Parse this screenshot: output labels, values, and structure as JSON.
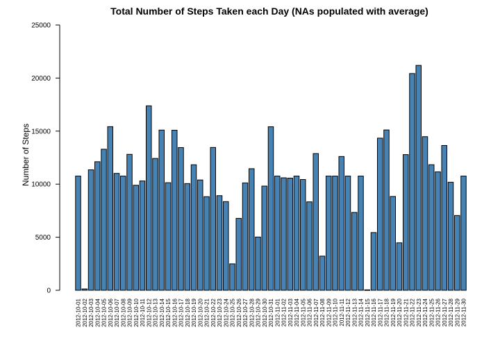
{
  "chart_data": {
    "type": "bar",
    "title": "Total Number of Steps Taken each Day (NAs populated with average)",
    "xlabel": "",
    "ylabel": "Number of Steps",
    "ylim": [
      0,
      25000
    ],
    "yticks": [
      0,
      5000,
      10000,
      15000,
      20000,
      25000
    ],
    "grid": false,
    "bar_color": "#4682B4",
    "bar_border": "#000000",
    "categories": [
      "2012-10-01",
      "2012-10-02",
      "2012-10-03",
      "2012-10-04",
      "2012-10-05",
      "2012-10-06",
      "2012-10-07",
      "2012-10-08",
      "2012-10-09",
      "2012-10-10",
      "2012-10-11",
      "2012-10-12",
      "2012-10-13",
      "2012-10-14",
      "2012-10-15",
      "2012-10-16",
      "2012-10-17",
      "2012-10-18",
      "2012-10-19",
      "2012-10-20",
      "2012-10-21",
      "2012-10-22",
      "2012-10-23",
      "2012-10-24",
      "2012-10-25",
      "2012-10-26",
      "2012-10-27",
      "2012-10-28",
      "2012-10-29",
      "2012-10-30",
      "2012-10-31",
      "2012-11-01",
      "2012-11-02",
      "2012-11-03",
      "2012-11-04",
      "2012-11-05",
      "2012-11-06",
      "2012-11-07",
      "2012-11-08",
      "2012-11-09",
      "2012-11-10",
      "2012-11-11",
      "2012-11-12",
      "2012-11-13",
      "2012-11-14",
      "2012-11-15",
      "2012-11-16",
      "2012-11-17",
      "2012-11-18",
      "2012-11-19",
      "2012-11-20",
      "2012-11-21",
      "2012-11-22",
      "2012-11-23",
      "2012-11-24",
      "2012-11-25",
      "2012-11-26",
      "2012-11-27",
      "2012-11-28",
      "2012-11-29",
      "2012-11-30"
    ],
    "values": [
      10766,
      126,
      11352,
      12116,
      13294,
      15420,
      11015,
      10766,
      12811,
      9900,
      10304,
      17382,
      12426,
      15098,
      10139,
      15084,
      13452,
      10056,
      11829,
      10395,
      8821,
      13460,
      8918,
      8355,
      2492,
      6778,
      10119,
      11458,
      5018,
      9819,
      15414,
      10766,
      10600,
      10571,
      10766,
      10439,
      8334,
      12883,
      3219,
      10766,
      10766,
      12608,
      10765,
      7336,
      10766,
      41,
      5441,
      14339,
      15110,
      8841,
      4472,
      12787,
      20427,
      21194,
      14478,
      11834,
      11162,
      13646,
      10183,
      7047,
      10766
    ]
  }
}
